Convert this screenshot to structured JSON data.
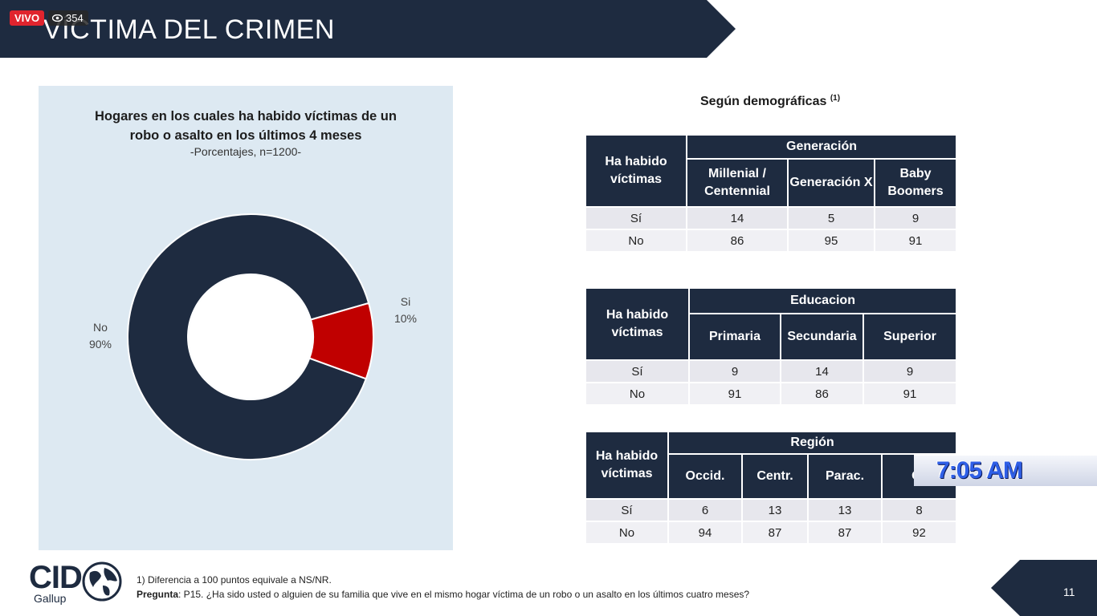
{
  "stream": {
    "live_label": "VIVO",
    "viewer_count": "354"
  },
  "header": {
    "title": "VÍCTIMA DEL CRIMEN",
    "banner_color": "#1e2b40"
  },
  "chart": {
    "title_line1": "Hogares en los cuales ha habido víctimas de un",
    "title_line2": "robo o asalto en los últimos 4 meses",
    "subtitle": "-Porcentajes, n=1200-"
  },
  "chart_data": {
    "type": "pie",
    "title": "Hogares en los cuales ha habido víctimas de un robo o asalto en los últimos 4 meses",
    "subtitle": "-Porcentajes, n=1200-",
    "categories": [
      "No",
      "Si"
    ],
    "values": [
      90,
      10
    ],
    "value_labels": [
      "90%",
      "10%"
    ],
    "colors": [
      "#1e2b40",
      "#c00000"
    ]
  },
  "demographics": {
    "title": "Según demográficas",
    "footnote_mark": "(1)",
    "row_header": "Ha habido víctimas",
    "tables": [
      {
        "group": "Generación",
        "columns": [
          "Millenial / Centennial",
          "Generación X",
          "Baby Boomers"
        ],
        "rows": [
          {
            "label": "Sí",
            "values": [
              "14",
              "5",
              "9"
            ]
          },
          {
            "label": "No",
            "values": [
              "86",
              "95",
              "91"
            ]
          }
        ]
      },
      {
        "group": "Educacion",
        "columns": [
          "Primaria",
          "Secundaria",
          "Superior"
        ],
        "rows": [
          {
            "label": "Sí",
            "values": [
              "9",
              "14",
              "9"
            ]
          },
          {
            "label": "No",
            "values": [
              "91",
              "86",
              "91"
            ]
          }
        ]
      },
      {
        "group": "Región",
        "columns": [
          "Occid.",
          "Centr.",
          "Parac.",
          "Or"
        ],
        "rows": [
          {
            "label": "Sí",
            "values": [
              "6",
              "13",
              "13",
              "8"
            ]
          },
          {
            "label": "No",
            "values": [
              "94",
              "87",
              "87",
              "92"
            ]
          }
        ]
      }
    ]
  },
  "overlay": {
    "time": "7:05 AM"
  },
  "footer": {
    "logo_main": "CID",
    "logo_sub": "Gallup",
    "note": "1) Diferencia a 100 puntos equivale a NS/NR.",
    "question_label": "Pregunta",
    "question_text": ": P15. ¿Ha sido usted o alguien de su familia que vive en el mismo hogar víctima de un robo o un asalto en los últimos cuatro meses?",
    "page_number": "11"
  }
}
